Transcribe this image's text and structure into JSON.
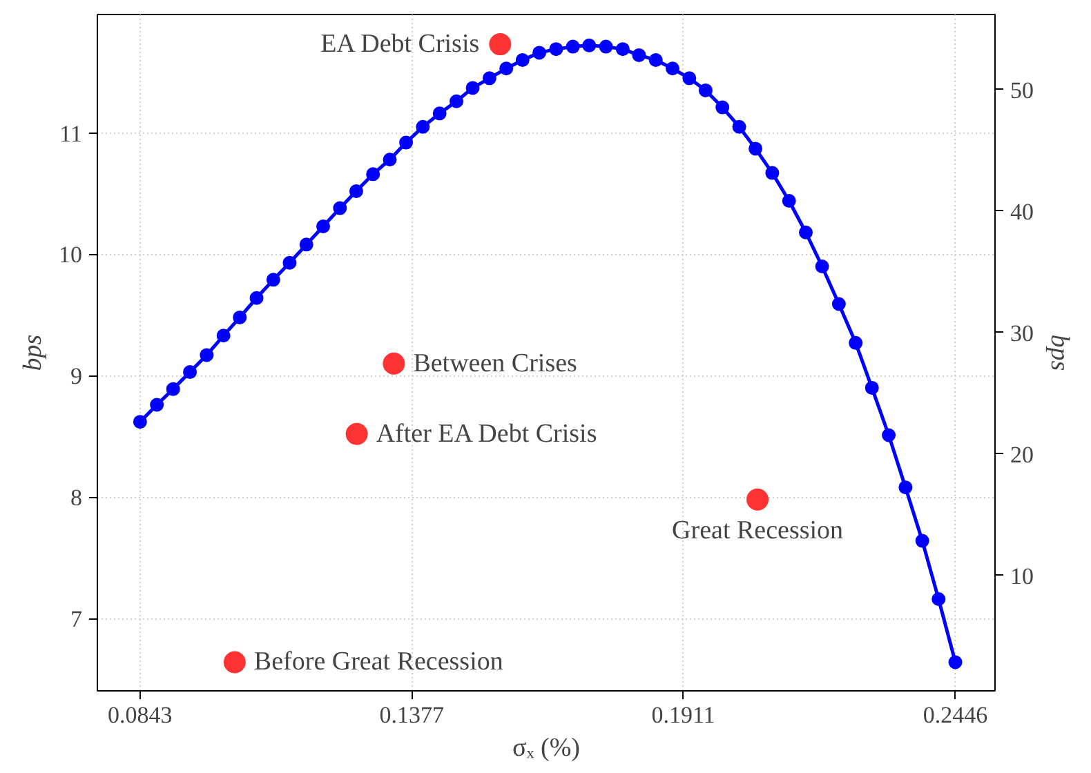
{
  "chart_data": {
    "type": "line",
    "xlabel": "σₓ (%)",
    "ylabel": "bps",
    "y2label": "bps",
    "xlim": [
      0.0759,
      0.2524
    ],
    "xticks": [
      0.0843,
      0.1377,
      0.1911,
      0.2446
    ],
    "ylim": [
      6.404,
      11.975
    ],
    "yticks": [
      7,
      8,
      9,
      10,
      11
    ],
    "y2lim": [
      0.49,
      56.19
    ],
    "y2ticks": [
      10,
      20,
      30,
      40,
      50
    ],
    "grid": true,
    "marker": "circle",
    "line_style": "solid",
    "series": [
      {
        "color": "#0000ff",
        "x": [
          0.0843,
          0.0876,
          0.0908,
          0.0941,
          0.0974,
          0.1007,
          0.1039,
          0.1072,
          0.1105,
          0.1137,
          0.117,
          0.1203,
          0.1236,
          0.1268,
          0.1301,
          0.1334,
          0.1366,
          0.1399,
          0.1432,
          0.1465,
          0.1497,
          0.153,
          0.1563,
          0.1595,
          0.1628,
          0.1661,
          0.1694,
          0.1726,
          0.1759,
          0.1792,
          0.1824,
          0.1857,
          0.189,
          0.1923,
          0.1955,
          0.1988,
          0.2021,
          0.2053,
          0.2086,
          0.2119,
          0.2152,
          0.2184,
          0.2217,
          0.225,
          0.2282,
          0.2315,
          0.2348,
          0.2381,
          0.2413,
          0.2446
        ],
        "values": [
          8.62,
          8.76,
          8.89,
          9.03,
          9.17,
          9.33,
          9.48,
          9.64,
          9.79,
          9.93,
          10.08,
          10.23,
          10.38,
          10.52,
          10.66,
          10.78,
          10.92,
          11.05,
          11.16,
          11.26,
          11.37,
          11.45,
          11.53,
          11.6,
          11.66,
          11.69,
          11.71,
          11.72,
          11.71,
          11.69,
          11.64,
          11.6,
          11.53,
          11.45,
          11.35,
          11.21,
          11.05,
          10.87,
          10.67,
          10.44,
          10.18,
          9.9,
          9.59,
          9.27,
          8.9,
          8.51,
          8.08,
          7.64,
          7.16,
          6.64
        ]
      },
      {
        "type": "scatter",
        "color": "#ff3333",
        "x": [
          0.1029,
          0.1269,
          0.1342,
          0.1551,
          0.2057
        ],
        "values": [
          6.64,
          8.52,
          9.1,
          11.73,
          7.98
        ]
      }
    ],
    "annotations": [
      {
        "text": "Before Great Recession",
        "x": 0.1029,
        "y": 6.64
      },
      {
        "text": "After EA Debt Crisis",
        "x": 0.1269,
        "y": 8.52
      },
      {
        "text": "Between Crises",
        "x": 0.1342,
        "y": 9.1
      },
      {
        "text": "EA Debt Crisis",
        "x": 0.1551,
        "y": 11.73
      },
      {
        "text": "Great Recession",
        "x": 0.2057,
        "y": 7.98
      }
    ]
  }
}
